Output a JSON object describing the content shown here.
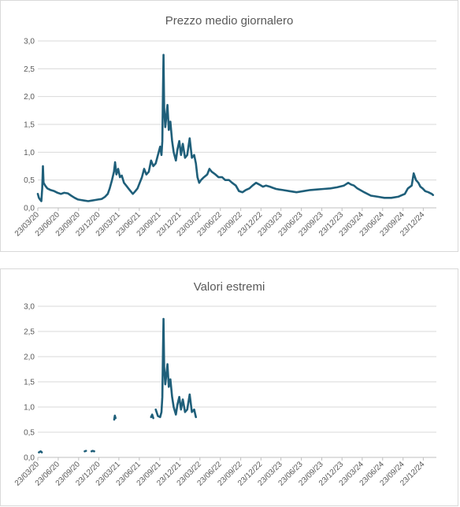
{
  "chart_data": [
    {
      "type": "line",
      "title": "Prezzo medio giornalero",
      "ylim": [
        0,
        3.0
      ],
      "y_ticks": [
        "0,0",
        "0,5",
        "1,0",
        "1,5",
        "2,0",
        "2,5",
        "3,0"
      ],
      "x_ticks": [
        "23/03/20",
        "23/06/20",
        "23/09/20",
        "23/12/20",
        "23/03/21",
        "23/06/21",
        "23/09/21",
        "23/12/21",
        "23/03/22",
        "23/06/22",
        "23/09/22",
        "23/12/22",
        "23/03/23",
        "23/06/23",
        "23/09/23",
        "23/12/23",
        "23/03/24",
        "23/06/24",
        "23/09/24",
        "23/12/24"
      ],
      "grid": true,
      "color": "#1f5f7a",
      "series": [
        {
          "points": [
            [
              "2020-03-23",
              0.25
            ],
            [
              "2020-03-28",
              0.18
            ],
            [
              "2020-04-02",
              0.15
            ],
            [
              "2020-04-08",
              0.12
            ],
            [
              "2020-04-12",
              0.35
            ],
            [
              "2020-04-15",
              0.75
            ],
            [
              "2020-04-18",
              0.45
            ],
            [
              "2020-04-25",
              0.4
            ],
            [
              "2020-05-05",
              0.35
            ],
            [
              "2020-05-20",
              0.32
            ],
            [
              "2020-06-05",
              0.3
            ],
            [
              "2020-06-20",
              0.27
            ],
            [
              "2020-07-05",
              0.25
            ],
            [
              "2020-07-20",
              0.27
            ],
            [
              "2020-08-05",
              0.26
            ],
            [
              "2020-08-20",
              0.22
            ],
            [
              "2020-09-05",
              0.18
            ],
            [
              "2020-09-20",
              0.15
            ],
            [
              "2020-10-05",
              0.14
            ],
            [
              "2020-10-20",
              0.13
            ],
            [
              "2020-11-05",
              0.12
            ],
            [
              "2020-11-20",
              0.13
            ],
            [
              "2020-12-05",
              0.14
            ],
            [
              "2020-12-20",
              0.15
            ],
            [
              "2021-01-05",
              0.16
            ],
            [
              "2021-01-20",
              0.2
            ],
            [
              "2021-02-01",
              0.25
            ],
            [
              "2021-02-10",
              0.35
            ],
            [
              "2021-02-20",
              0.5
            ],
            [
              "2021-03-01",
              0.65
            ],
            [
              "2021-03-06",
              0.82
            ],
            [
              "2021-03-12",
              0.6
            ],
            [
              "2021-03-20",
              0.7
            ],
            [
              "2021-03-28",
              0.55
            ],
            [
              "2021-04-05",
              0.58
            ],
            [
              "2021-04-15",
              0.45
            ],
            [
              "2021-04-25",
              0.4
            ],
            [
              "2021-05-05",
              0.35
            ],
            [
              "2021-05-15",
              0.3
            ],
            [
              "2021-05-25",
              0.25
            ],
            [
              "2021-06-05",
              0.3
            ],
            [
              "2021-06-15",
              0.35
            ],
            [
              "2021-06-25",
              0.45
            ],
            [
              "2021-07-05",
              0.55
            ],
            [
              "2021-07-15",
              0.7
            ],
            [
              "2021-07-25",
              0.6
            ],
            [
              "2021-08-05",
              0.65
            ],
            [
              "2021-08-15",
              0.85
            ],
            [
              "2021-08-25",
              0.75
            ],
            [
              "2021-09-05",
              0.8
            ],
            [
              "2021-09-15",
              0.95
            ],
            [
              "2021-09-25",
              1.1
            ],
            [
              "2021-10-01",
              0.95
            ],
            [
              "2021-10-05",
              1.2
            ],
            [
              "2021-10-08",
              2.2
            ],
            [
              "2021-10-10",
              2.75
            ],
            [
              "2021-10-13",
              1.8
            ],
            [
              "2021-10-18",
              1.45
            ],
            [
              "2021-10-22",
              1.6
            ],
            [
              "2021-10-28",
              1.85
            ],
            [
              "2021-11-03",
              1.4
            ],
            [
              "2021-11-10",
              1.55
            ],
            [
              "2021-11-18",
              1.2
            ],
            [
              "2021-11-25",
              1.0
            ],
            [
              "2021-12-05",
              0.85
            ],
            [
              "2021-12-12",
              1.05
            ],
            [
              "2021-12-20",
              1.2
            ],
            [
              "2021-12-28",
              0.95
            ],
            [
              "2022-01-05",
              1.15
            ],
            [
              "2022-01-15",
              0.9
            ],
            [
              "2022-01-25",
              0.95
            ],
            [
              "2022-02-05",
              1.25
            ],
            [
              "2022-02-15",
              0.9
            ],
            [
              "2022-02-25",
              0.95
            ],
            [
              "2022-03-05",
              0.8
            ],
            [
              "2022-03-12",
              0.55
            ],
            [
              "2022-03-20",
              0.45
            ],
            [
              "2022-03-28",
              0.5
            ],
            [
              "2022-04-10",
              0.55
            ],
            [
              "2022-04-25",
              0.6
            ],
            [
              "2022-05-05",
              0.7
            ],
            [
              "2022-05-15",
              0.65
            ],
            [
              "2022-06-01",
              0.6
            ],
            [
              "2022-06-15",
              0.55
            ],
            [
              "2022-07-01",
              0.55
            ],
            [
              "2022-07-15",
              0.5
            ],
            [
              "2022-08-01",
              0.5
            ],
            [
              "2022-08-15",
              0.45
            ],
            [
              "2022-09-01",
              0.4
            ],
            [
              "2022-09-15",
              0.3
            ],
            [
              "2022-10-01",
              0.28
            ],
            [
              "2022-10-15",
              0.32
            ],
            [
              "2022-11-01",
              0.35
            ],
            [
              "2022-11-15",
              0.4
            ],
            [
              "2022-12-01",
              0.45
            ],
            [
              "2022-12-15",
              0.42
            ],
            [
              "2023-01-01",
              0.38
            ],
            [
              "2023-01-15",
              0.4
            ],
            [
              "2023-02-01",
              0.38
            ],
            [
              "2023-02-15",
              0.36
            ],
            [
              "2023-03-01",
              0.34
            ],
            [
              "2023-03-15",
              0.33
            ],
            [
              "2023-04-01",
              0.32
            ],
            [
              "2023-05-01",
              0.3
            ],
            [
              "2023-06-01",
              0.28
            ],
            [
              "2023-07-01",
              0.3
            ],
            [
              "2023-08-01",
              0.32
            ],
            [
              "2023-09-01",
              0.33
            ],
            [
              "2023-10-01",
              0.34
            ],
            [
              "2023-11-01",
              0.35
            ],
            [
              "2023-12-01",
              0.37
            ],
            [
              "2024-01-01",
              0.4
            ],
            [
              "2024-01-20",
              0.45
            ],
            [
              "2024-02-01",
              0.42
            ],
            [
              "2024-02-15",
              0.4
            ],
            [
              "2024-03-01",
              0.35
            ],
            [
              "2024-04-01",
              0.28
            ],
            [
              "2024-05-01",
              0.22
            ],
            [
              "2024-06-01",
              0.2
            ],
            [
              "2024-07-01",
              0.18
            ],
            [
              "2024-08-01",
              0.18
            ],
            [
              "2024-09-01",
              0.2
            ],
            [
              "2024-10-01",
              0.25
            ],
            [
              "2024-10-15",
              0.35
            ],
            [
              "2024-11-01",
              0.4
            ],
            [
              "2024-11-10",
              0.62
            ],
            [
              "2024-11-20",
              0.5
            ],
            [
              "2024-12-01",
              0.45
            ],
            [
              "2024-12-10",
              0.38
            ],
            [
              "2024-12-20",
              0.35
            ],
            [
              "2025-01-01",
              0.3
            ],
            [
              "2025-01-15",
              0.28
            ],
            [
              "2025-01-30",
              0.25
            ],
            [
              "2025-02-05",
              0.23
            ]
          ]
        }
      ]
    },
    {
      "type": "line",
      "title": "Valori estremi",
      "ylim": [
        0,
        3.0
      ],
      "y_ticks": [
        "0,0",
        "0,5",
        "1,0",
        "1,5",
        "2,0",
        "2,5",
        "3,0"
      ],
      "x_ticks": [
        "23/03/20",
        "23/06/20",
        "23/09/20",
        "23/12/20",
        "23/03/21",
        "23/06/21",
        "23/09/21",
        "23/12/21",
        "23/03/22",
        "23/06/22",
        "23/09/22",
        "23/12/22",
        "23/03/23",
        "23/06/23",
        "23/09/23",
        "23/12/23",
        "23/03/24",
        "23/06/24",
        "23/09/24",
        "23/12/24"
      ],
      "grid": true,
      "color": "#1f5f7a",
      "segments": [
        [
          [
            "2020-03-28",
            0.1
          ],
          [
            "2020-04-05",
            0.12
          ],
          [
            "2020-04-10",
            0.1
          ]
        ],
        [
          [
            "2020-10-20",
            0.12
          ],
          [
            "2020-10-26",
            0.13
          ]
        ],
        [
          [
            "2020-11-20",
            0.12
          ],
          [
            "2020-11-25",
            0.13
          ],
          [
            "2020-12-02",
            0.12
          ]
        ],
        [
          [
            "2021-03-02",
            0.75
          ],
          [
            "2021-03-05",
            0.83
          ],
          [
            "2021-03-08",
            0.78
          ]
        ],
        [
          [
            "2021-08-15",
            0.8
          ],
          [
            "2021-08-20",
            0.85
          ],
          [
            "2021-08-25",
            0.78
          ]
        ],
        [
          [
            "2021-09-05",
            0.95
          ],
          [
            "2021-09-15",
            0.82
          ],
          [
            "2021-09-25",
            0.8
          ],
          [
            "2021-10-01",
            0.9
          ],
          [
            "2021-10-05",
            1.2
          ],
          [
            "2021-10-08",
            2.2
          ],
          [
            "2021-10-10",
            2.75
          ],
          [
            "2021-10-13",
            1.8
          ],
          [
            "2021-10-18",
            1.45
          ],
          [
            "2021-10-22",
            1.6
          ],
          [
            "2021-10-28",
            1.85
          ],
          [
            "2021-11-03",
            1.4
          ],
          [
            "2021-11-10",
            1.55
          ],
          [
            "2021-11-18",
            1.2
          ],
          [
            "2021-11-25",
            1.0
          ],
          [
            "2021-12-05",
            0.85
          ],
          [
            "2021-12-12",
            1.05
          ],
          [
            "2021-12-20",
            1.2
          ],
          [
            "2021-12-28",
            0.95
          ],
          [
            "2022-01-05",
            1.15
          ],
          [
            "2022-01-15",
            0.9
          ],
          [
            "2022-01-25",
            0.95
          ],
          [
            "2022-02-05",
            1.25
          ],
          [
            "2022-02-15",
            0.9
          ],
          [
            "2022-02-25",
            0.95
          ],
          [
            "2022-03-05",
            0.8
          ]
        ]
      ]
    }
  ]
}
